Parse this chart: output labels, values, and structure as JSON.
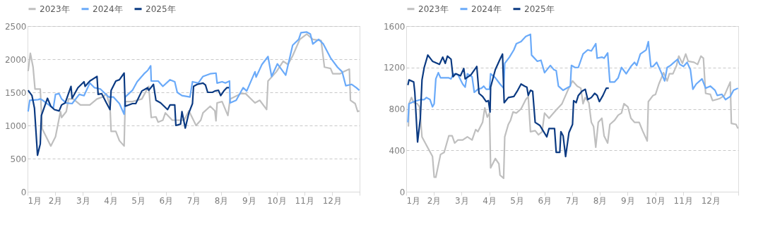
{
  "chart_data": [
    {
      "type": "line",
      "legend": "top",
      "grid": "y",
      "marker": "none",
      "line_style": "solid",
      "xlim": [
        1,
        13
      ],
      "xticks": [
        {
          "value": 1,
          "label": "1月"
        },
        {
          "value": 2,
          "label": "2月"
        },
        {
          "value": 3,
          "label": "3月"
        },
        {
          "value": 4,
          "label": "4月"
        },
        {
          "value": 5,
          "label": "5月"
        },
        {
          "value": 6,
          "label": "6月"
        },
        {
          "value": 7,
          "label": "7月"
        },
        {
          "value": 8,
          "label": "8月"
        },
        {
          "value": 9,
          "label": "9月"
        },
        {
          "value": 10,
          "label": "10月"
        },
        {
          "value": 11,
          "label": "11月"
        },
        {
          "value": 12,
          "label": "12月"
        },
        {
          "value": 13,
          "label": null
        }
      ],
      "ylim": [
        0,
        2500
      ],
      "yticks": [
        0,
        500,
        1000,
        1500,
        2000,
        2500
      ],
      "series": [
        {
          "name": "2023年",
          "color": "#bfbfbf",
          "x": [
            1.02,
            1.1,
            1.2,
            1.27,
            1.46,
            1.53,
            1.84,
            2.01,
            2.19,
            2.23,
            2.4,
            2.48,
            2.65,
            2.91,
            3.25,
            3.51,
            3.72,
            3.85,
            3.98,
            4.02,
            4.19,
            4.32,
            4.49,
            4.53,
            4.79,
            5.13,
            5.38,
            5.47,
            5.64,
            5.72,
            5.89,
            5.98,
            6.23,
            6.32,
            6.66,
            6.83,
            7.09,
            7.26,
            7.34,
            7.6,
            7.77,
            7.81,
            7.85,
            8.03,
            8.24,
            8.32,
            8.71,
            8.88,
            9.22,
            9.39,
            9.64,
            9.69,
            9.99,
            10.24,
            10.41,
            10.58,
            10.84,
            11.09,
            11.31,
            11.61,
            11.73,
            11.95,
            12.03,
            12.29,
            12.42,
            12.63,
            12.67,
            12.84,
            12.93,
            12.99
          ],
          "values": [
            1820,
            2090,
            1880,
            1550,
            1550,
            950,
            690,
            830,
            1210,
            1120,
            1210,
            1400,
            1400,
            1310,
            1310,
            1400,
            1430,
            1480,
            1290,
            910,
            910,
            770,
            690,
            1360,
            1360,
            1400,
            1590,
            1120,
            1130,
            1050,
            1080,
            1190,
            1080,
            1080,
            1080,
            1220,
            1000,
            1080,
            1190,
            1290,
            1220,
            1070,
            1340,
            1360,
            1150,
            1400,
            1480,
            1480,
            1340,
            1380,
            1240,
            1670,
            1810,
            1970,
            1920,
            2050,
            2300,
            2380,
            2300,
            2280,
            1880,
            1860,
            1780,
            1780,
            1810,
            1850,
            1380,
            1330,
            1210,
            1220
          ]
        },
        {
          "name": "2024年",
          "color": "#6aaaf9",
          "x": [
            1.02,
            1.08,
            1.38,
            1.46,
            1.55,
            1.93,
            2.01,
            2.14,
            2.23,
            2.4,
            2.61,
            2.87,
            3.04,
            3.25,
            3.42,
            3.63,
            3.93,
            4.1,
            4.32,
            4.49,
            4.53,
            4.79,
            4.96,
            5.21,
            5.34,
            5.45,
            5.47,
            5.72,
            5.89,
            6.15,
            6.32,
            6.41,
            6.58,
            6.87,
            6.96,
            7.17,
            7.34,
            7.6,
            7.81,
            7.85,
            8.03,
            8.15,
            8.3,
            8.32,
            8.54,
            8.79,
            8.92,
            9.22,
            9.26,
            9.47,
            9.69,
            9.82,
            10.03,
            10.33,
            10.58,
            10.8,
            10.88,
            11.09,
            11.22,
            11.31,
            11.52,
            11.69,
            11.95,
            12.2,
            12.37,
            12.5,
            12.71,
            12.88,
            12.99
          ],
          "values": [
            1210,
            1380,
            1390,
            1400,
            1380,
            1260,
            1470,
            1480,
            1400,
            1340,
            1330,
            1470,
            1450,
            1640,
            1570,
            1550,
            1430,
            1430,
            1330,
            1170,
            1430,
            1530,
            1660,
            1780,
            1830,
            1900,
            1670,
            1670,
            1590,
            1690,
            1660,
            1500,
            1450,
            1430,
            1660,
            1640,
            1740,
            1780,
            1790,
            1640,
            1660,
            1640,
            1670,
            1340,
            1380,
            1570,
            1520,
            1810,
            1730,
            1920,
            2040,
            1740,
            1930,
            1760,
            2210,
            2300,
            2400,
            2410,
            2380,
            2230,
            2300,
            2230,
            2020,
            1880,
            1810,
            1600,
            1620,
            1570,
            1530
          ]
        },
        {
          "name": "2025年",
          "color": "#0b3a82",
          "x": [
            1.02,
            1.16,
            1.25,
            1.36,
            1.46,
            1.5,
            1.72,
            1.84,
            1.97,
            2.14,
            2.23,
            2.36,
            2.57,
            2.61,
            2.82,
            3.04,
            3.08,
            3.25,
            3.51,
            3.55,
            3.68,
            3.85,
            3.98,
            4.02,
            4.19,
            4.32,
            4.49,
            4.53,
            4.79,
            4.91,
            5.13,
            5.34,
            5.38,
            5.55,
            5.64,
            5.81,
            6.06,
            6.15,
            6.32,
            6.36,
            6.53,
            6.58,
            6.7,
            6.83,
            6.96,
            7.0,
            7.13,
            7.34,
            7.43,
            7.51,
            7.68,
            7.77,
            7.9,
            7.98,
            8.11,
            8.2,
            8.28
          ],
          "values": [
            1530,
            1450,
            1260,
            550,
            720,
            1150,
            1410,
            1290,
            1240,
            1220,
            1310,
            1340,
            1590,
            1410,
            1570,
            1660,
            1590,
            1670,
            1740,
            1470,
            1480,
            1340,
            1240,
            1530,
            1670,
            1690,
            1790,
            1290,
            1330,
            1330,
            1520,
            1570,
            1530,
            1620,
            1380,
            1340,
            1240,
            1310,
            1310,
            1000,
            1020,
            1210,
            960,
            1190,
            1330,
            1590,
            1620,
            1640,
            1610,
            1500,
            1500,
            1520,
            1530,
            1450,
            1530,
            1570,
            1570
          ]
        }
      ]
    },
    {
      "type": "line",
      "legend": "top",
      "grid": "y",
      "marker": "none",
      "line_style": "solid",
      "xlim": [
        1,
        13
      ],
      "xticks": [
        {
          "value": 1,
          "label": "1月"
        },
        {
          "value": 2,
          "label": "2月"
        },
        {
          "value": 3,
          "label": "3月"
        },
        {
          "value": 4,
          "label": "4月"
        },
        {
          "value": 5,
          "label": "5月"
        },
        {
          "value": 6,
          "label": "6月"
        },
        {
          "value": 7,
          "label": "7月"
        },
        {
          "value": 8,
          "label": "8月"
        },
        {
          "value": 9,
          "label": "9月"
        },
        {
          "value": 10,
          "label": "10月"
        },
        {
          "value": 11,
          "label": "11月"
        },
        {
          "value": 12,
          "label": "12月"
        },
        {
          "value": 13,
          "label": null
        }
      ],
      "ylim": [
        0,
        1600
      ],
      "yticks": [
        0,
        400,
        800,
        1200,
        1600
      ],
      "series": [
        {
          "name": "2023年",
          "color": "#bfbfbf",
          "x": [
            1.08,
            1.1,
            1.19,
            1.27,
            1.4,
            1.48,
            1.57,
            1.73,
            1.95,
            2.01,
            2.07,
            2.24,
            2.37,
            2.54,
            2.66,
            2.75,
            2.87,
            3.04,
            3.21,
            3.38,
            3.51,
            3.59,
            3.76,
            3.84,
            3.93,
            4.01,
            4.05,
            4.22,
            4.35,
            4.39,
            4.52,
            4.56,
            4.69,
            4.77,
            4.86,
            4.98,
            5.15,
            5.32,
            5.41,
            5.49,
            5.66,
            5.78,
            5.91,
            6.0,
            6.16,
            6.42,
            6.63,
            6.84,
            7.01,
            7.18,
            7.31,
            7.39,
            7.47,
            7.6,
            7.69,
            7.77,
            7.85,
            7.94,
            8.07,
            8.15,
            8.28,
            8.36,
            8.53,
            8.66,
            8.78,
            8.87,
            9.01,
            9.12,
            9.25,
            9.42,
            9.54,
            9.71,
            9.75,
            9.92,
            10.01,
            10.13,
            10.3,
            10.43,
            10.51,
            10.64,
            10.77,
            10.85,
            10.98,
            11.1,
            11.19,
            11.4,
            11.53,
            11.65,
            11.74,
            11.82,
            11.99,
            12.07,
            12.33,
            12.5,
            12.71,
            12.75,
            12.92,
            12.99
          ],
          "values": [
            630,
            850,
            910,
            860,
            850,
            820,
            530,
            450,
            340,
            140,
            140,
            360,
            380,
            540,
            540,
            470,
            500,
            500,
            530,
            500,
            600,
            580,
            670,
            810,
            720,
            760,
            230,
            320,
            270,
            160,
            130,
            530,
            650,
            690,
            770,
            760,
            800,
            890,
            920,
            580,
            590,
            550,
            580,
            760,
            710,
            790,
            850,
            980,
            1070,
            1020,
            1000,
            850,
            910,
            860,
            670,
            630,
            430,
            670,
            710,
            540,
            470,
            650,
            690,
            740,
            760,
            850,
            820,
            710,
            670,
            670,
            590,
            490,
            870,
            930,
            940,
            1040,
            1150,
            1070,
            1140,
            1140,
            1220,
            1310,
            1240,
            1330,
            1260,
            1250,
            1230,
            1310,
            1290,
            950,
            940,
            880,
            900,
            930,
            1060,
            660,
            650,
            610
          ]
        },
        {
          "name": "2024年",
          "color": "#6aaaf9",
          "x": [
            1.06,
            1.1,
            1.27,
            1.52,
            1.65,
            1.73,
            1.86,
            1.95,
            2.01,
            2.07,
            2.16,
            2.24,
            2.54,
            2.62,
            2.7,
            2.87,
            3.04,
            3.13,
            3.21,
            3.38,
            3.46,
            3.59,
            3.72,
            3.8,
            3.89,
            4.01,
            4.05,
            4.22,
            4.39,
            4.52,
            4.56,
            4.73,
            4.89,
            4.98,
            5.15,
            5.32,
            5.49,
            5.53,
            5.74,
            5.87,
            6.0,
            6.21,
            6.33,
            6.42,
            6.5,
            6.67,
            6.93,
            6.97,
            7.1,
            7.22,
            7.39,
            7.56,
            7.69,
            7.85,
            7.9,
            8.07,
            8.15,
            8.28,
            8.36,
            8.53,
            8.66,
            8.78,
            8.95,
            9.12,
            9.25,
            9.33,
            9.46,
            9.67,
            9.75,
            9.84,
            9.92,
            10.05,
            10.22,
            10.34,
            10.43,
            10.55,
            10.68,
            10.81,
            10.89,
            11.02,
            11.15,
            11.27,
            11.36,
            11.48,
            11.69,
            11.82,
            11.99,
            12.16,
            12.24,
            12.41,
            12.54,
            12.71,
            12.83,
            12.99
          ],
          "values": [
            670,
            850,
            870,
            890,
            890,
            910,
            890,
            820,
            850,
            1090,
            1150,
            1100,
            1100,
            1090,
            1140,
            1130,
            1040,
            1010,
            1140,
            1110,
            960,
            990,
            1000,
            1020,
            990,
            990,
            1140,
            1100,
            1040,
            1000,
            1240,
            1300,
            1370,
            1430,
            1450,
            1500,
            1520,
            1320,
            1260,
            1270,
            1150,
            1220,
            1180,
            1170,
            1020,
            980,
            1020,
            1220,
            1200,
            1200,
            1330,
            1370,
            1360,
            1430,
            1290,
            1300,
            1290,
            1340,
            1060,
            1060,
            1100,
            1200,
            1140,
            1210,
            1250,
            1220,
            1330,
            1370,
            1450,
            1210,
            1210,
            1250,
            1150,
            1070,
            1200,
            1220,
            1250,
            1280,
            1230,
            1210,
            1250,
            1180,
            990,
            1040,
            1090,
            1000,
            1020,
            980,
            930,
            940,
            890,
            920,
            980,
            1000
          ]
        },
        {
          "name": "2025年",
          "color": "#0b3a82",
          "x": [
            1.06,
            1.1,
            1.27,
            1.31,
            1.41,
            1.51,
            1.57,
            1.65,
            1.78,
            1.95,
            2.2,
            2.32,
            2.41,
            2.49,
            2.62,
            2.69,
            2.79,
            2.96,
            3.08,
            3.13,
            3.34,
            3.55,
            3.63,
            3.76,
            3.89,
            3.97,
            4.03,
            4.05,
            4.22,
            4.39,
            4.48,
            4.54,
            4.69,
            4.89,
            5.03,
            5.15,
            5.28,
            5.36,
            5.41,
            5.49,
            5.57,
            5.66,
            5.83,
            6.08,
            6.16,
            6.36,
            6.42,
            6.55,
            6.59,
            6.67,
            6.76,
            6.88,
            7.01,
            7.05,
            7.14,
            7.22,
            7.35,
            7.47,
            7.56,
            7.69,
            7.81,
            7.9,
            7.98,
            8.11,
            8.23,
            8.32
          ],
          "values": [
            1030,
            1080,
            1060,
            960,
            480,
            710,
            1080,
            1200,
            1320,
            1260,
            1230,
            1300,
            1240,
            1310,
            1280,
            1110,
            1140,
            1120,
            1190,
            1090,
            1130,
            1210,
            950,
            920,
            870,
            880,
            770,
            1010,
            1180,
            1280,
            1330,
            860,
            910,
            920,
            980,
            1040,
            1020,
            1010,
            930,
            980,
            970,
            670,
            640,
            530,
            610,
            610,
            380,
            380,
            580,
            540,
            340,
            570,
            650,
            880,
            860,
            930,
            970,
            990,
            890,
            910,
            950,
            930,
            870,
            930,
            1000,
            1000
          ]
        }
      ]
    }
  ]
}
